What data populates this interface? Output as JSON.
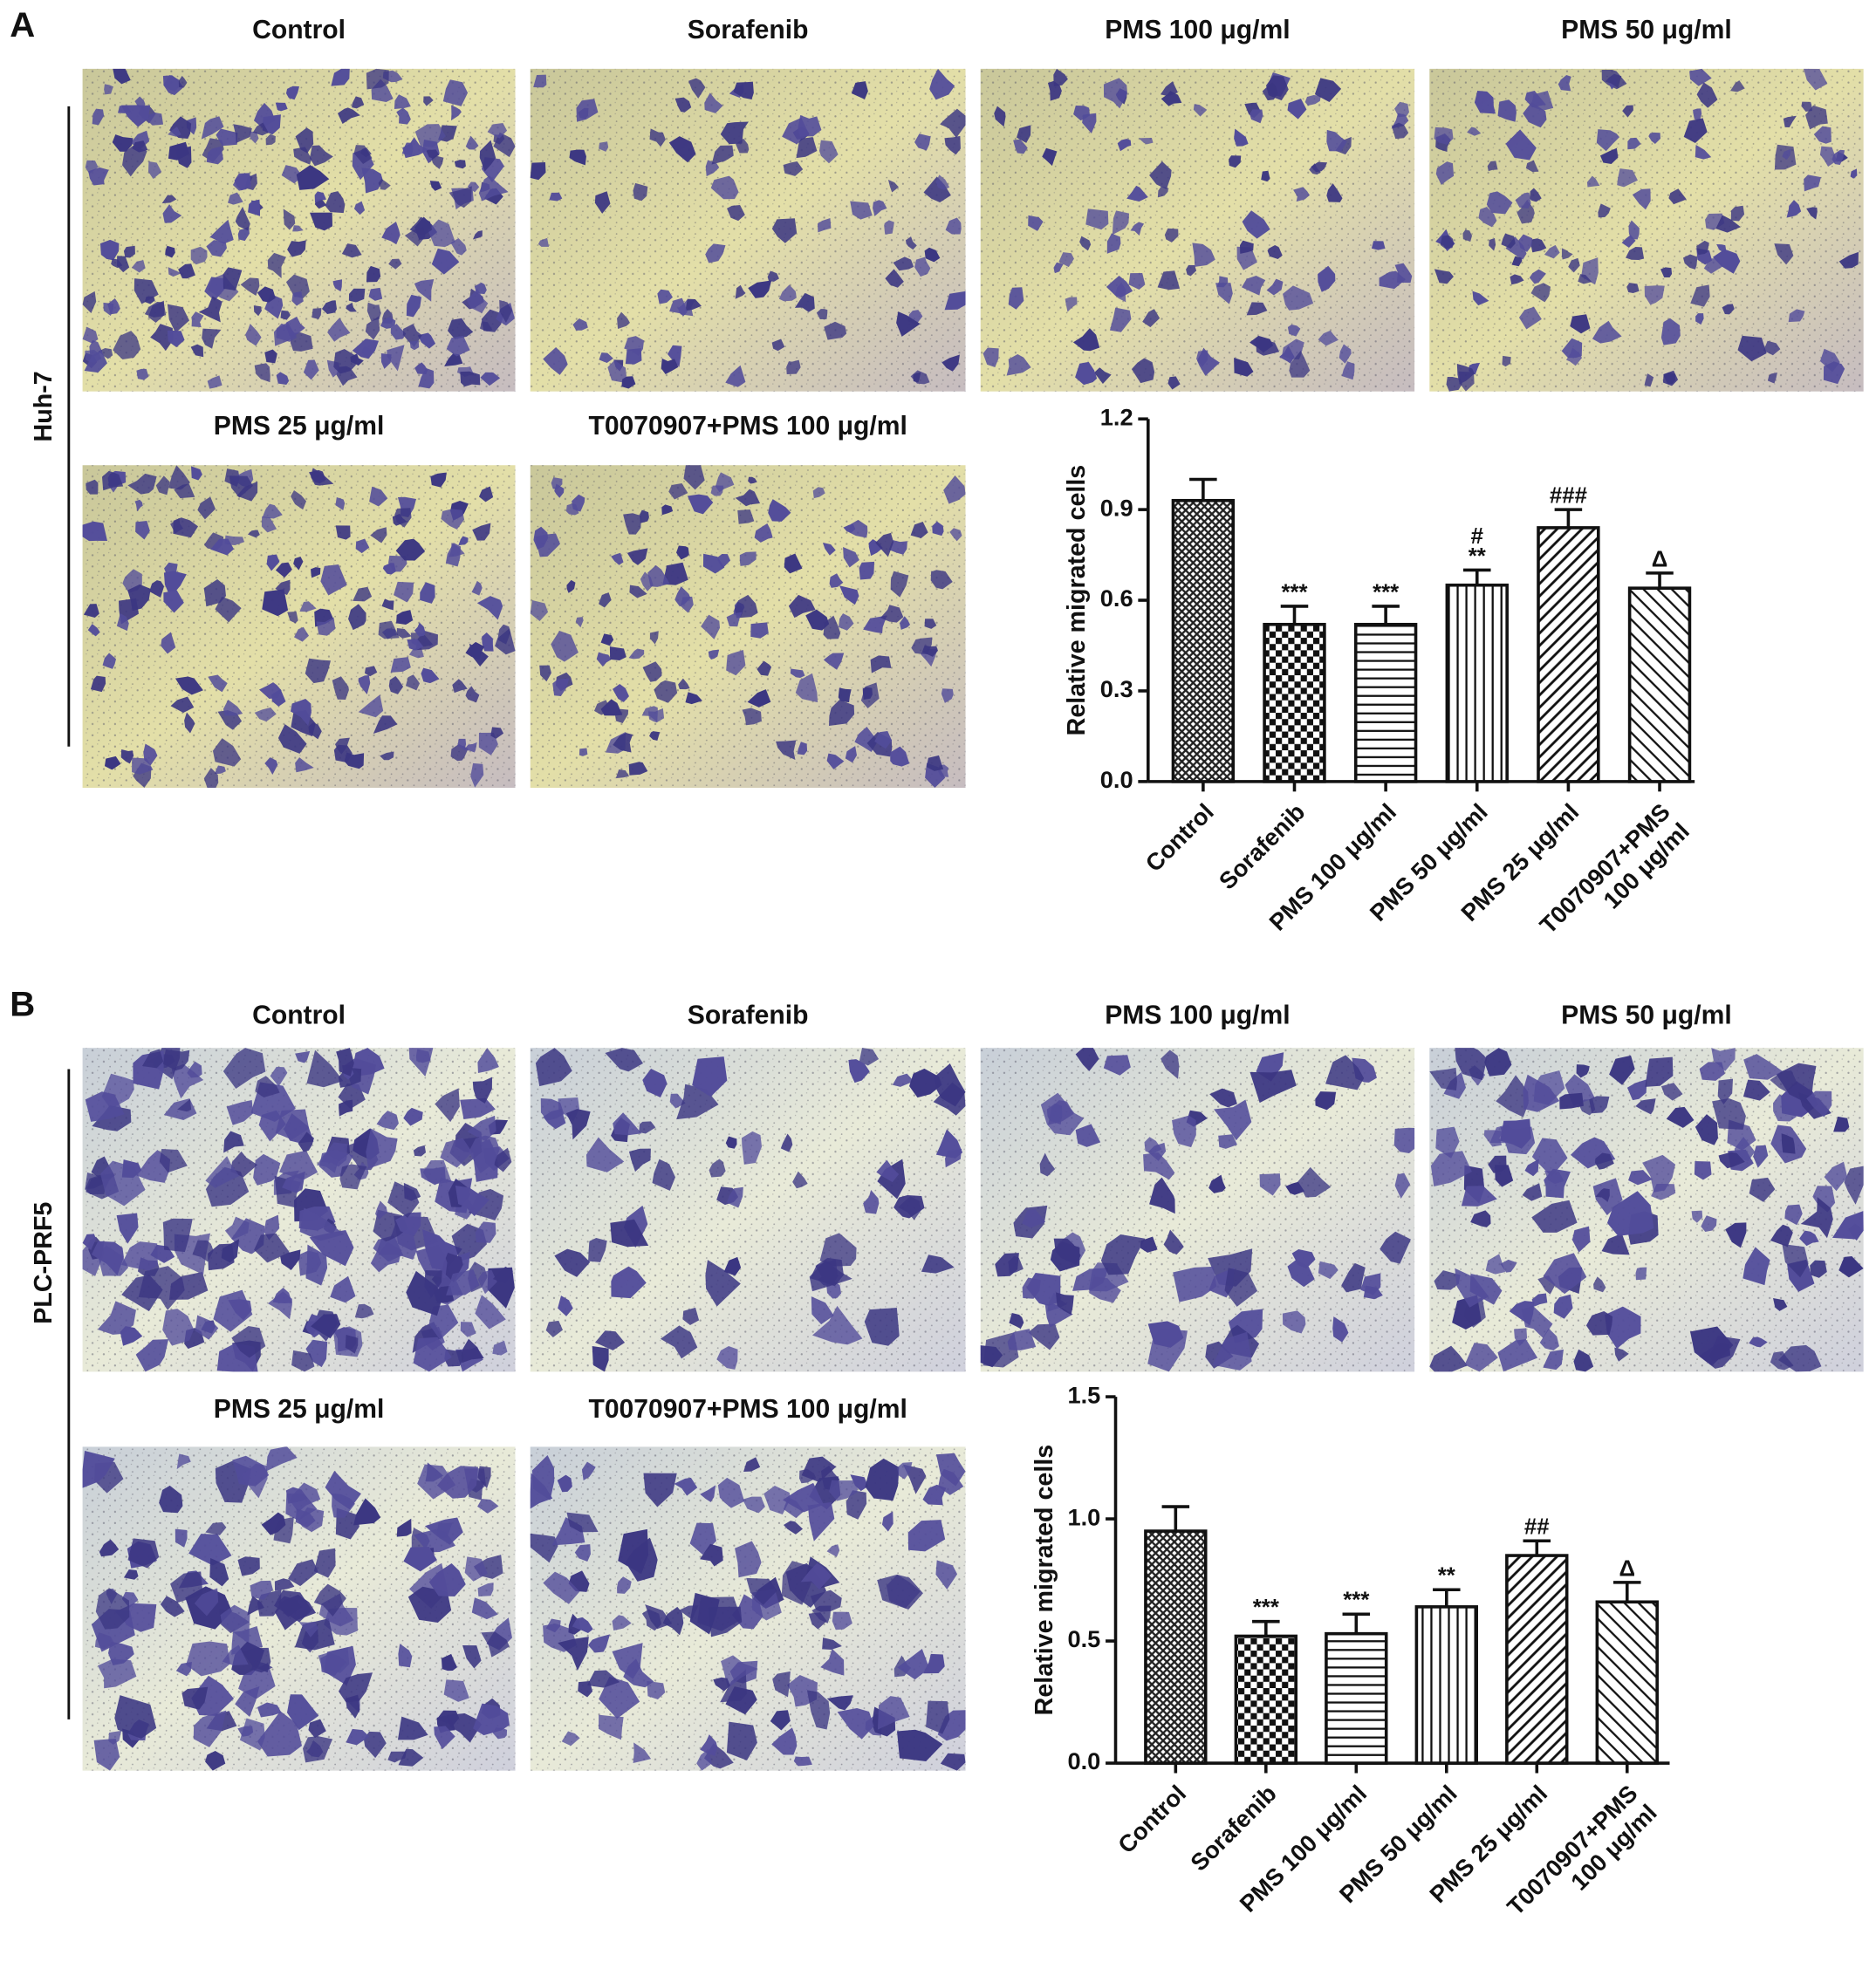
{
  "panels": [
    {
      "label": "A",
      "cell_line": "Huh-7",
      "image_titles": [
        "Control",
        "Sorafenib",
        "PMS 100 μg/ml",
        "PMS 50 μg/ml",
        "PMS 25 μg/ml",
        "T0070907+PMS 100 μg/ml"
      ]
    },
    {
      "label": "B",
      "cell_line": "PLC-PRF5",
      "image_titles": [
        "Control",
        "Sorafenib",
        "PMS 100 μg/ml",
        "PMS 50 μg/ml",
        "PMS 25 μg/ml",
        "T0070907+PMS 100 μg/ml"
      ]
    }
  ],
  "chart_data": [
    {
      "type": "bar",
      "ylabel": "Relative migrated cells",
      "categories": [
        "Control",
        "Sorafenib",
        "PMS 100 μg/ml",
        "PMS 50 μg/ml",
        "PMS 25 μg/ml",
        "T0070907+PMS\n100 μg/ml"
      ],
      "values": [
        0.93,
        0.52,
        0.52,
        0.65,
        0.84,
        0.64
      ],
      "errors": [
        0.07,
        0.06,
        0.06,
        0.05,
        0.06,
        0.05
      ],
      "annotations": [
        [],
        [
          "***"
        ],
        [
          "***"
        ],
        [
          "#",
          "**"
        ],
        [
          "###"
        ],
        [
          "Δ"
        ]
      ],
      "patterns": [
        "crosshatch",
        "checker",
        "horizontal",
        "vertical",
        "diagonal",
        "antidiagonal"
      ],
      "ylim": [
        0,
        1.2
      ],
      "yticks": [
        {
          "value": 0,
          "label": "0.0"
        },
        0.3,
        0.6,
        0.9,
        1.2
      ]
    },
    {
      "type": "bar",
      "ylabel": "Relative migrated cells",
      "categories": [
        "Control",
        "Sorafenib",
        "PMS 100 μg/ml",
        "PMS 50 μg/ml",
        "PMS 25 μg/ml",
        "T0070907+PMS\n100 μg/ml"
      ],
      "values": [
        0.95,
        0.52,
        0.53,
        0.64,
        0.85,
        0.66
      ],
      "errors": [
        0.1,
        0.06,
        0.08,
        0.07,
        0.06,
        0.08
      ],
      "annotations": [
        [],
        [
          "***"
        ],
        [
          "***"
        ],
        [
          "**"
        ],
        [
          "##"
        ],
        [
          "Δ"
        ]
      ],
      "patterns": [
        "crosshatch",
        "checker",
        "horizontal",
        "vertical",
        "diagonal",
        "antidiagonal"
      ],
      "ylim": [
        0,
        1.5
      ],
      "yticks": [
        {
          "value": 0,
          "label": "0.0"
        },
        0.5,
        {
          "value": 1,
          "label": "1.0"
        },
        1.5
      ]
    }
  ]
}
